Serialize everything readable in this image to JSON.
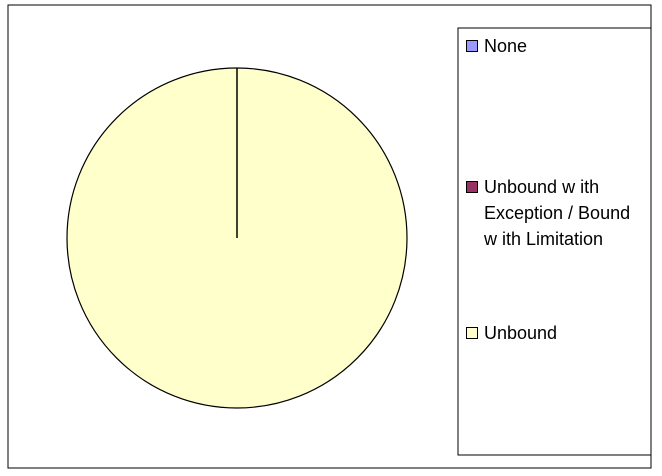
{
  "chart_data": {
    "type": "pie",
    "categories": [
      "None",
      "Unbound w ith Exception / Bound w ith Limitation",
      "Unbound"
    ],
    "values": [
      0,
      0,
      100
    ],
    "colors": [
      "#9999ff",
      "#993366",
      "#ffffcc"
    ],
    "legend": "right"
  }
}
